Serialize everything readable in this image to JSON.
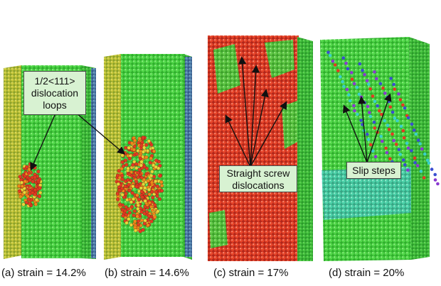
{
  "annotations": {
    "loops": {
      "lines": [
        "1/2<111>",
        "dislocation",
        "loops"
      ]
    },
    "screw": {
      "lines": [
        "Straight screw",
        "dislocations"
      ]
    },
    "slip": {
      "text": "Slip steps"
    }
  },
  "captions": {
    "a": "(a) strain = 14.2%",
    "b": "(b) strain = 14.6%",
    "c": "(c) strain = 17%",
    "d": "(d) strain = 20%"
  },
  "colors": {
    "matrix_green": "#3fc83a",
    "defect_red": "#e23b22",
    "defect_orange": "#f08a1a",
    "defect_yellow": "#e6d83a",
    "surface_blue": "#3a4fd0",
    "surface_purple": "#8a3ad0",
    "surface_cyan": "#3ad0c8",
    "box_fill": "#d8f2d2"
  }
}
